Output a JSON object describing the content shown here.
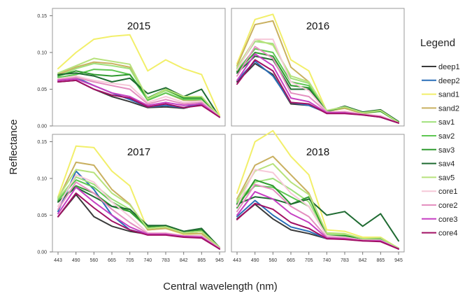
{
  "chart_data": {
    "type": "line",
    "xlabel": "Central wavelength (nm)",
    "ylabel": "Reflectance",
    "x_ticks": [
      "443",
      "490",
      "560",
      "665",
      "705",
      "740",
      "783",
      "842",
      "865",
      "945"
    ],
    "y_ticks": [
      "0.00",
      "0.05",
      "0.10",
      "0.15"
    ],
    "ylim": [
      0,
      0.16
    ],
    "legend_title": "Legend",
    "legend_position": "right",
    "colors": {
      "deep1": "#3a3a3a",
      "deep2": "#2a6fb8",
      "sand1": "#f2ef6a",
      "sand2": "#c9b060",
      "sav1": "#9fe07a",
      "sav2": "#5ec752",
      "sav3": "#2f9a2f",
      "sav4": "#1f6b32",
      "sav5": "#b7e27c",
      "core1": "#f6c8d8",
      "core2": "#e48fc0",
      "core3": "#c63fc2",
      "core4": "#a11064"
    },
    "panels": [
      {
        "title": "2015",
        "series": [
          {
            "name": "deep1",
            "values": [
              0.06,
              0.062,
              0.05,
              0.04,
              0.033,
              0.025,
              0.026,
              0.024,
              0.03,
              0.012
            ]
          },
          {
            "name": "deep2",
            "values": [
              0.062,
              0.066,
              0.055,
              0.045,
              0.036,
              0.026,
              0.028,
              0.025,
              0.031,
              0.012
            ]
          },
          {
            "name": "sand1",
            "values": [
              0.078,
              0.1,
              0.118,
              0.122,
              0.124,
              0.075,
              0.09,
              0.078,
              0.07,
              0.015
            ]
          },
          {
            "name": "sand2",
            "values": [
              0.07,
              0.08,
              0.087,
              0.085,
              0.08,
              0.035,
              0.045,
              0.035,
              0.035,
              0.013
            ]
          },
          {
            "name": "sav1",
            "values": [
              0.068,
              0.078,
              0.085,
              0.082,
              0.078,
              0.037,
              0.048,
              0.038,
              0.038,
              0.013
            ]
          },
          {
            "name": "sav2",
            "values": [
              0.066,
              0.07,
              0.077,
              0.076,
              0.07,
              0.035,
              0.045,
              0.036,
              0.036,
              0.013
            ]
          },
          {
            "name": "sav3",
            "values": [
              0.068,
              0.075,
              0.07,
              0.068,
              0.07,
              0.038,
              0.05,
              0.038,
              0.038,
              0.012
            ]
          },
          {
            "name": "sav4",
            "values": [
              0.07,
              0.072,
              0.068,
              0.06,
              0.065,
              0.044,
              0.052,
              0.04,
              0.05,
              0.012
            ]
          },
          {
            "name": "sav5",
            "values": [
              0.072,
              0.082,
              0.092,
              0.088,
              0.084,
              0.037,
              0.05,
              0.04,
              0.04,
              0.013
            ]
          },
          {
            "name": "core1",
            "values": [
              0.064,
              0.068,
              0.062,
              0.058,
              0.055,
              0.032,
              0.04,
              0.032,
              0.034,
              0.012
            ]
          },
          {
            "name": "core2",
            "values": [
              0.063,
              0.066,
              0.06,
              0.055,
              0.05,
              0.03,
              0.036,
              0.03,
              0.032,
              0.012
            ]
          },
          {
            "name": "core3",
            "values": [
              0.062,
              0.064,
              0.055,
              0.045,
              0.04,
              0.028,
              0.032,
              0.028,
              0.03,
              0.012
            ]
          },
          {
            "name": "core4",
            "values": [
              0.06,
              0.062,
              0.05,
              0.042,
              0.038,
              0.026,
              0.03,
              0.025,
              0.028,
              0.012
            ]
          }
        ]
      },
      {
        "title": "2016",
        "series": [
          {
            "name": "deep1",
            "values": [
              0.06,
              0.085,
              0.07,
              0.03,
              0.028,
              0.018,
              0.018,
              0.016,
              0.012,
              0.004
            ]
          },
          {
            "name": "deep2",
            "values": [
              0.062,
              0.088,
              0.068,
              0.032,
              0.028,
              0.018,
              0.018,
              0.016,
              0.012,
              0.004
            ]
          },
          {
            "name": "sand1",
            "values": [
              0.085,
              0.145,
              0.152,
              0.09,
              0.075,
              0.02,
              0.025,
              0.018,
              0.022,
              0.005
            ]
          },
          {
            "name": "sand2",
            "values": [
              0.082,
              0.138,
              0.143,
              0.08,
              0.06,
              0.02,
              0.024,
              0.017,
              0.02,
              0.005
            ]
          },
          {
            "name": "sav1",
            "values": [
              0.078,
              0.115,
              0.112,
              0.065,
              0.058,
              0.02,
              0.026,
              0.018,
              0.02,
              0.005
            ]
          },
          {
            "name": "sav2",
            "values": [
              0.075,
              0.105,
              0.1,
              0.06,
              0.055,
              0.02,
              0.026,
              0.018,
              0.02,
              0.005
            ]
          },
          {
            "name": "sav3",
            "values": [
              0.074,
              0.1,
              0.095,
              0.055,
              0.052,
              0.02,
              0.026,
              0.018,
              0.02,
              0.005
            ]
          },
          {
            "name": "sav4",
            "values": [
              0.072,
              0.095,
              0.09,
              0.05,
              0.05,
              0.02,
              0.027,
              0.019,
              0.022,
              0.006
            ]
          },
          {
            "name": "sav5",
            "values": [
              0.08,
              0.118,
              0.11,
              0.068,
              0.06,
              0.021,
              0.026,
              0.018,
              0.021,
              0.005
            ]
          },
          {
            "name": "core1",
            "values": [
              0.076,
              0.118,
              0.118,
              0.06,
              0.048,
              0.019,
              0.02,
              0.016,
              0.014,
              0.004
            ]
          },
          {
            "name": "core2",
            "values": [
              0.068,
              0.108,
              0.092,
              0.045,
              0.04,
              0.019,
              0.019,
              0.016,
              0.013,
              0.004
            ]
          },
          {
            "name": "core3",
            "values": [
              0.062,
              0.098,
              0.082,
              0.038,
              0.033,
              0.018,
              0.018,
              0.015,
              0.012,
              0.004
            ]
          },
          {
            "name": "core4",
            "values": [
              0.057,
              0.09,
              0.075,
              0.032,
              0.03,
              0.017,
              0.017,
              0.015,
              0.012,
              0.004
            ]
          }
        ]
      },
      {
        "title": "2017",
        "series": [
          {
            "name": "deep1",
            "values": [
              0.048,
              0.078,
              0.048,
              0.035,
              0.028,
              0.024,
              0.024,
              0.022,
              0.022,
              0.004
            ]
          },
          {
            "name": "deep2",
            "values": [
              0.055,
              0.11,
              0.085,
              0.05,
              0.03,
              0.024,
              0.024,
              0.022,
              0.02,
              0.004
            ]
          },
          {
            "name": "sand1",
            "values": [
              0.075,
              0.144,
              0.142,
              0.11,
              0.09,
              0.03,
              0.032,
              0.024,
              0.025,
              0.006
            ]
          },
          {
            "name": "sand2",
            "values": [
              0.072,
              0.122,
              0.118,
              0.085,
              0.065,
              0.03,
              0.032,
              0.025,
              0.025,
              0.006
            ]
          },
          {
            "name": "sav1",
            "values": [
              0.072,
              0.102,
              0.092,
              0.072,
              0.058,
              0.032,
              0.034,
              0.026,
              0.028,
              0.006
            ]
          },
          {
            "name": "sav2",
            "values": [
              0.07,
              0.098,
              0.088,
              0.068,
              0.055,
              0.032,
              0.034,
              0.026,
              0.028,
              0.006
            ]
          },
          {
            "name": "sav3",
            "values": [
              0.068,
              0.09,
              0.08,
              0.062,
              0.055,
              0.034,
              0.036,
              0.028,
              0.03,
              0.006
            ]
          },
          {
            "name": "sav4",
            "values": [
              0.068,
              0.088,
              0.075,
              0.062,
              0.058,
              0.036,
              0.036,
              0.028,
              0.032,
              0.006
            ]
          },
          {
            "name": "sav5",
            "values": [
              0.074,
              0.112,
              0.108,
              0.08,
              0.064,
              0.032,
              0.034,
              0.026,
              0.028,
              0.006
            ]
          },
          {
            "name": "core1",
            "values": [
              0.062,
              0.105,
              0.095,
              0.068,
              0.048,
              0.026,
              0.026,
              0.022,
              0.022,
              0.005
            ]
          },
          {
            "name": "core2",
            "values": [
              0.058,
              0.095,
              0.08,
              0.058,
              0.04,
              0.025,
              0.025,
              0.022,
              0.021,
              0.005
            ]
          },
          {
            "name": "core3",
            "values": [
              0.052,
              0.088,
              0.068,
              0.05,
              0.034,
              0.024,
              0.024,
              0.021,
              0.02,
              0.004
            ]
          },
          {
            "name": "core4",
            "values": [
              0.048,
              0.08,
              0.06,
              0.042,
              0.03,
              0.023,
              0.023,
              0.02,
              0.019,
              0.004
            ]
          }
        ]
      },
      {
        "title": "2018",
        "series": [
          {
            "name": "deep1",
            "values": [
              0.045,
              0.065,
              0.045,
              0.03,
              0.025,
              0.018,
              0.018,
              0.016,
              0.015,
              0.004
            ]
          },
          {
            "name": "deep2",
            "values": [
              0.048,
              0.07,
              0.05,
              0.034,
              0.028,
              0.018,
              0.018,
              0.016,
              0.015,
              0.004
            ]
          },
          {
            "name": "sand1",
            "values": [
              0.08,
              0.15,
              0.165,
              0.13,
              0.105,
              0.03,
              0.028,
              0.02,
              0.02,
              0.005
            ]
          },
          {
            "name": "sand2",
            "values": [
              0.072,
              0.118,
              0.13,
              0.105,
              0.08,
              0.025,
              0.024,
              0.018,
              0.018,
              0.005
            ]
          },
          {
            "name": "sav1",
            "values": [
              0.068,
              0.095,
              0.1,
              0.085,
              0.068,
              0.024,
              0.024,
              0.018,
              0.018,
              0.005
            ]
          },
          {
            "name": "sav2",
            "values": [
              0.066,
              0.09,
              0.088,
              0.075,
              0.062,
              0.022,
              0.022,
              0.018,
              0.018,
              0.005
            ]
          },
          {
            "name": "sav3",
            "values": [
              0.06,
              0.098,
              0.09,
              0.065,
              0.075,
              0.022,
              0.022,
              0.018,
              0.018,
              0.005
            ]
          },
          {
            "name": "sav4",
            "values": [
              0.065,
              0.075,
              0.072,
              0.065,
              0.072,
              0.05,
              0.055,
              0.035,
              0.052,
              0.015
            ]
          },
          {
            "name": "sav5",
            "values": [
              0.07,
              0.11,
              0.12,
              0.095,
              0.078,
              0.026,
              0.025,
              0.018,
              0.019,
              0.005
            ]
          },
          {
            "name": "core1",
            "values": [
              0.062,
              0.112,
              0.108,
              0.08,
              0.062,
              0.022,
              0.02,
              0.016,
              0.016,
              0.004
            ]
          },
          {
            "name": "core2",
            "values": [
              0.055,
              0.092,
              0.085,
              0.062,
              0.048,
              0.02,
              0.019,
              0.016,
              0.015,
              0.004
            ]
          },
          {
            "name": "core3",
            "values": [
              0.05,
              0.082,
              0.072,
              0.052,
              0.04,
              0.019,
              0.018,
              0.015,
              0.015,
              0.004
            ]
          },
          {
            "name": "core4",
            "values": [
              0.044,
              0.066,
              0.058,
              0.04,
              0.032,
              0.018,
              0.017,
              0.015,
              0.014,
              0.004
            ]
          }
        ]
      }
    ]
  }
}
